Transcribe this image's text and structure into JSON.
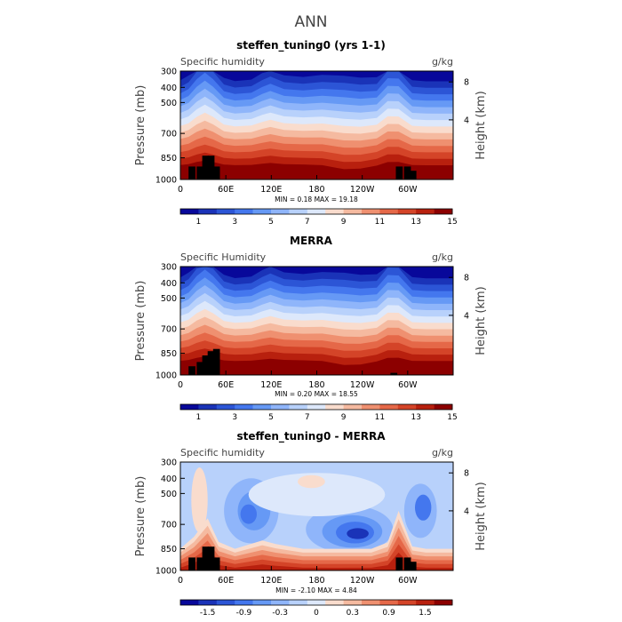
{
  "page_title": "ANN",
  "colors": {
    "main": [
      "#08089a",
      "#1a33b8",
      "#2c55d6",
      "#4477ee",
      "#6699f5",
      "#8fb5fa",
      "#b8d1fb",
      "#dde8fb",
      "#f9dccd",
      "#f5baa0",
      "#ef9070",
      "#e56848",
      "#d44428",
      "#b8200e",
      "#8c0000"
    ],
    "diff": [
      "#08089a",
      "#1a33b8",
      "#2c55d6",
      "#4477ee",
      "#6699f5",
      "#8fb5fa",
      "#b8d1fb",
      "#dde8fb",
      "#f9dccd",
      "#f5baa0",
      "#ef9070",
      "#e56848",
      "#d44428",
      "#b8200e",
      "#8c0000"
    ]
  },
  "chart_data": [
    {
      "type": "heatmap",
      "title": "steffen_tuning0 (yrs 1-1)",
      "left_label": "Specific humidity",
      "units": "g/kg",
      "ylabel": "Pressure (mb)",
      "y2label": "Height (km)",
      "yticks": [
        "300",
        "400",
        "500",
        "700",
        "850",
        "1000"
      ],
      "y2ticks": [
        "8",
        "4"
      ],
      "xticks": [
        "0",
        "60E",
        "120E",
        "180",
        "120W",
        "60W"
      ],
      "stats": "MIN =    0.18   MAX =   19.18",
      "colorbar_labels": [
        "1",
        "3",
        "5",
        "7",
        "9",
        "11",
        "13",
        "15"
      ]
    },
    {
      "type": "heatmap",
      "title": "MERRA",
      "left_label": "Specific Humidity",
      "units": "g/kg",
      "ylabel": "Pressure (mb)",
      "y2label": "Height (km)",
      "yticks": [
        "300",
        "400",
        "500",
        "700",
        "850",
        "1000"
      ],
      "y2ticks": [
        "8",
        "4"
      ],
      "xticks": [
        "0",
        "60E",
        "120E",
        "180",
        "120W",
        "60W"
      ],
      "stats": "MIN =    0.20   MAX =   18.55",
      "colorbar_labels": [
        "1",
        "3",
        "5",
        "7",
        "9",
        "11",
        "13",
        "15"
      ]
    },
    {
      "type": "heatmap",
      "title": "steffen_tuning0 - MERRA",
      "left_label": "Specific humidity",
      "units": "g/kg",
      "ylabel": "Pressure (mb)",
      "y2label": "Height (km)",
      "yticks": [
        "300",
        "400",
        "500",
        "700",
        "850",
        "1000"
      ],
      "y2ticks": [
        "8",
        "4"
      ],
      "xticks": [
        "0",
        "60E",
        "120E",
        "180",
        "120W",
        "60W"
      ],
      "stats": "MIN =   -2.10   MAX =    4.84",
      "colorbar_labels": [
        "-1.5",
        "-0.9",
        "-0.3",
        "0",
        "0.3",
        "0.9",
        "1.5"
      ]
    }
  ]
}
